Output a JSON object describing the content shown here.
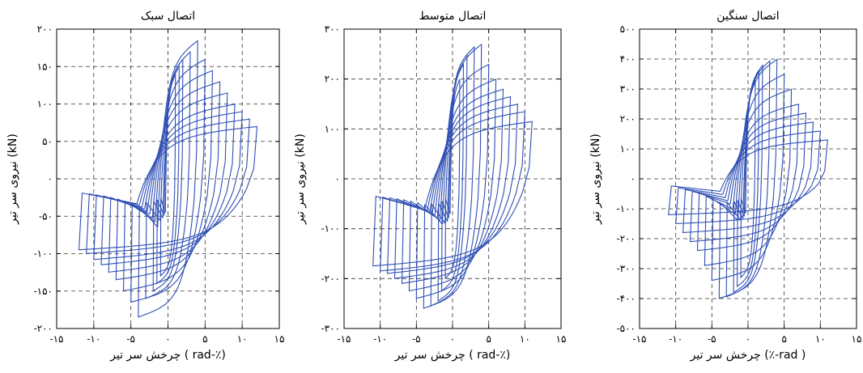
{
  "colors": {
    "series": "#2f4fb5",
    "axis": "#000000",
    "grid": "#333333"
  },
  "chart_data": [
    {
      "type": "line",
      "title": "اتصال سبک",
      "xlabel": "چرخش سر تیر",
      "xlabel_unit": "( rad-٪)",
      "ylabel": "نیروی سر تیر (kN)",
      "xlim": [
        -15,
        15
      ],
      "ylim": [
        -200,
        200
      ],
      "xticks": [
        -15,
        -10,
        -5,
        0,
        5,
        10,
        15
      ],
      "xtick_labels": [
        "-۱۵",
        "-۱۰",
        "-۵",
        "۰",
        "۵",
        "۱۰",
        "۱۵"
      ],
      "yticks": [
        -200,
        -150,
        -100,
        -50,
        0,
        50,
        100,
        150,
        200
      ],
      "ytick_labels": [
        "-۲۰۰",
        "-۱۵۰",
        "-۱۰۰",
        "-۵۰",
        "۰",
        "۵۰",
        "۱۰۰",
        "۱۵۰",
        "۲۰۰"
      ],
      "grid": true,
      "cycles": [
        {
          "rot": 1.0,
          "p": 140,
          "n": -130
        },
        {
          "rot": 1.5,
          "p": 150,
          "n": -140
        },
        {
          "rot": 2.0,
          "p": 160,
          "n": -150
        },
        {
          "rot": 3.0,
          "p": 170,
          "n": -160
        },
        {
          "rot": 4.0,
          "p": 185,
          "n": -185
        },
        {
          "rot": 5.0,
          "p": 160,
          "n": -165
        },
        {
          "rot": 6.0,
          "p": 145,
          "n": -150
        },
        {
          "rot": 7.0,
          "p": 130,
          "n": -135
        },
        {
          "rot": 8.0,
          "p": 115,
          "n": -125
        },
        {
          "rot": 9.0,
          "p": 100,
          "n": -115
        },
        {
          "rot": 10.0,
          "p": 90,
          "n": -108
        },
        {
          "rot": 11.0,
          "p": 80,
          "n": -100
        },
        {
          "rot": 12.0,
          "p": 70,
          "n": -95
        }
      ]
    },
    {
      "type": "line",
      "title": "اتصال متوسط",
      "xlabel": "چرخش سر تیر",
      "xlabel_unit": "( rad-٪)",
      "ylabel": "نیروی سر تیر (kN)",
      "xlim": [
        -15,
        15
      ],
      "ylim": [
        -300,
        300
      ],
      "xticks": [
        -15,
        -10,
        -5,
        0,
        5,
        10,
        15
      ],
      "xtick_labels": [
        "-۱۵",
        "-۱۰",
        "-۵",
        "۰",
        "۵",
        "۱۰",
        "۱۵"
      ],
      "yticks": [
        -300,
        -200,
        -100,
        0,
        100,
        200,
        300
      ],
      "ytick_labels": [
        "-۳۰۰",
        "-۲۰۰",
        "-۱۰۰",
        "۰",
        "۱۰۰",
        "۲۰۰",
        "۳۰۰"
      ],
      "grid": true,
      "cycles": [
        {
          "rot": 1.0,
          "p": 200,
          "n": -200
        },
        {
          "rot": 1.5,
          "p": 230,
          "n": -225
        },
        {
          "rot": 2.0,
          "p": 250,
          "n": -245
        },
        {
          "rot": 3.0,
          "p": 265,
          "n": -255
        },
        {
          "rot": 4.0,
          "p": 270,
          "n": -260
        },
        {
          "rot": 5.0,
          "p": 230,
          "n": -240
        },
        {
          "rot": 6.0,
          "p": 200,
          "n": -225
        },
        {
          "rot": 7.0,
          "p": 180,
          "n": -210
        },
        {
          "rot": 8.0,
          "p": 165,
          "n": -200
        },
        {
          "rot": 9.0,
          "p": 150,
          "n": -190
        },
        {
          "rot": 10.0,
          "p": 135,
          "n": -185
        },
        {
          "rot": 11.0,
          "p": 115,
          "n": -175
        }
      ]
    },
    {
      "type": "line",
      "title": "اتصال سنگین",
      "xlabel": "چرخش سر تیر",
      "xlabel_unit": "(٪-rad )",
      "ylabel": "نیروی سر تیر (kN)",
      "xlim": [
        -15,
        15
      ],
      "ylim": [
        -500,
        500
      ],
      "xticks": [
        -15,
        -10,
        -5,
        0,
        5,
        10,
        15
      ],
      "xtick_labels": [
        "-۱۵",
        "-۱۰",
        "-۵",
        "۰",
        "۵",
        "۱۰",
        "۱۵"
      ],
      "yticks": [
        -500,
        -400,
        -300,
        -200,
        -100,
        0,
        100,
        200,
        300,
        400,
        500
      ],
      "ytick_labels": [
        "-۵۰۰",
        "-۴۰۰",
        "-۳۰۰",
        "-۲۰۰",
        "-۱۰۰",
        "۰",
        "۱۰۰",
        "۲۰۰",
        "۳۰۰",
        "۴۰۰",
        "۵۰۰"
      ],
      "grid": true,
      "cycles": [
        {
          "rot": 1.0,
          "p": 330,
          "n": -330
        },
        {
          "rot": 1.5,
          "p": 360,
          "n": -360
        },
        {
          "rot": 2.0,
          "p": 380,
          "n": -380
        },
        {
          "rot": 3.0,
          "p": 395,
          "n": -395
        },
        {
          "rot": 4.0,
          "p": 400,
          "n": -400
        },
        {
          "rot": 5.0,
          "p": 350,
          "n": -340
        },
        {
          "rot": 6.0,
          "p": 300,
          "n": -290
        },
        {
          "rot": 7.0,
          "p": 250,
          "n": -240
        },
        {
          "rot": 8.0,
          "p": 220,
          "n": -210
        },
        {
          "rot": 9.0,
          "p": 190,
          "n": -180
        },
        {
          "rot": 10.0,
          "p": 160,
          "n": -150
        },
        {
          "rot": 11.0,
          "p": 130,
          "n": -120
        }
      ]
    }
  ]
}
